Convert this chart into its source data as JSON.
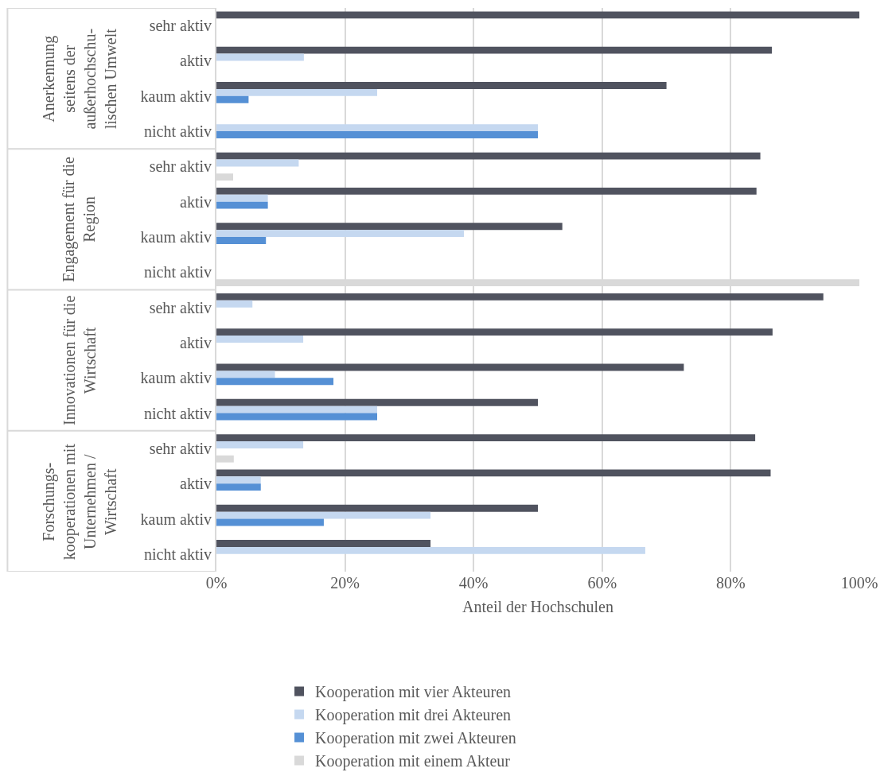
{
  "chart_data": {
    "type": "bar",
    "orientation": "horizontal",
    "xlabel": "Anteil der Hochschulen",
    "categories": [
      "sehr aktiv",
      "aktiv",
      "kaum aktiv",
      "nicht aktiv",
      "sehr aktiv",
      "aktiv",
      "kaum aktiv",
      "nicht aktiv",
      "sehr aktiv",
      "aktiv",
      "kaum aktiv",
      "nicht aktiv",
      "sehr aktiv",
      "aktiv",
      "kaum aktiv",
      "nicht aktiv"
    ],
    "annotations": [
      "Anerkennung\nseitens der\naußerhochschu-\nlischen Umwelt",
      "Engagement für die\nRegion",
      "Innovationen für die\nWirtschaft",
      "Forschungs-\nkooperationen mit\nUnternehmen /\nWirtschaft"
    ],
    "series": [
      {
        "name": "Kooperation mit vier Akteuren",
        "color": "#50535f",
        "values": [
          100,
          86.4,
          70,
          null,
          84.6,
          84,
          53.8,
          null,
          94.4,
          86.5,
          72.7,
          50,
          83.8,
          86.2,
          50,
          33.3
        ]
      },
      {
        "name": "Kooperation mit drei Akteuren",
        "color": "#c5d8f0",
        "values": [
          null,
          13.6,
          25,
          50,
          12.8,
          8,
          38.5,
          null,
          5.6,
          13.5,
          9.1,
          25,
          13.5,
          6.9,
          33.3,
          66.7
        ]
      },
      {
        "name": "Kooperation mit zwei Akteuren",
        "color": "#5590d5",
        "values": [
          null,
          null,
          5,
          50,
          null,
          8,
          7.7,
          null,
          null,
          null,
          18.2,
          25,
          null,
          6.9,
          16.7,
          null
        ]
      },
      {
        "name": "Kooperation mit einem Akteur",
        "color": "#d9d9d9",
        "values": [
          null,
          null,
          null,
          null,
          2.6,
          null,
          null,
          100,
          null,
          null,
          null,
          null,
          2.7,
          null,
          null,
          null
        ]
      }
    ],
    "xlim": [
      0,
      100
    ],
    "xticks": [
      {
        "value": 0,
        "label": "0%"
      },
      {
        "value": 20,
        "label": "20%"
      },
      {
        "value": 40,
        "label": "40%"
      },
      {
        "value": 60,
        "label": "60%"
      },
      {
        "value": 80,
        "label": "80%"
      },
      {
        "value": 100,
        "label": "100%"
      }
    ],
    "grid": "x",
    "legend": "bottom"
  }
}
